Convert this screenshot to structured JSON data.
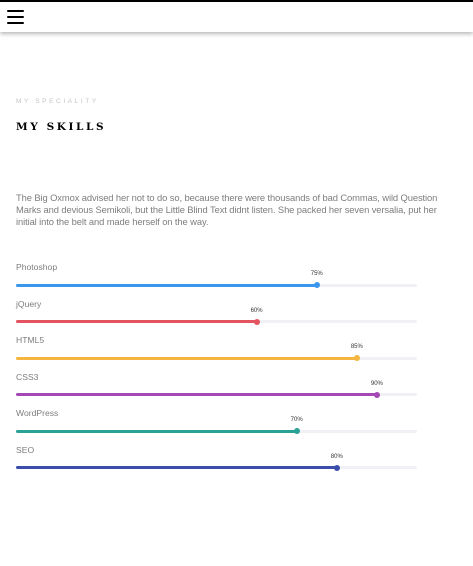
{
  "nav": {
    "menu_icon": "hamburger-menu-icon"
  },
  "section": {
    "eyebrow": "MY SPECIALITY",
    "title": "MY SKILLS",
    "intro": "The Big Oxmox advised her not to do so, because there were thousands of bad Commas, wild Question Marks and devious Semikoli, but the Little Blind Text didnt listen. She packed her seven versalia, put her initial into the belt and made herself on the way."
  },
  "skills": [
    {
      "label": "Photoshop",
      "percent": 75,
      "percent_label": "75%",
      "color": "#3b97ed"
    },
    {
      "label": "jQuery",
      "percent": 60,
      "percent_label": "60%",
      "color": "#e35360"
    },
    {
      "label": "HTML5",
      "percent": 85,
      "percent_label": "85%",
      "color": "#f4b63e"
    },
    {
      "label": "CSS3",
      "percent": 90,
      "percent_label": "90%",
      "color": "#a448b6"
    },
    {
      "label": "WordPress",
      "percent": 70,
      "percent_label": "70%",
      "color": "#2aa197"
    },
    {
      "label": "SEO",
      "percent": 80,
      "percent_label": "80%",
      "color": "#3b4eab"
    }
  ]
}
